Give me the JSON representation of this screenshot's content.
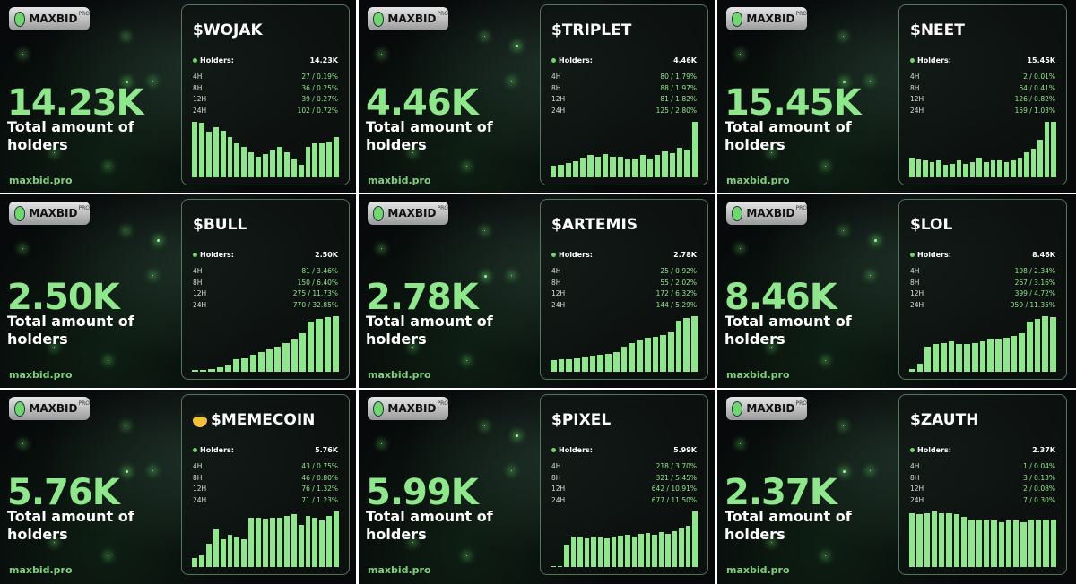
{
  "cards": [
    {
      "brand": "MAXBID",
      "badge": "PRO",
      "total": "14.23K",
      "caption": "Total amount of holders",
      "site": "maxbid.pro",
      "token": "$WOJAK",
      "holders_label": "Holders:",
      "holders": "14.23K",
      "stats": [
        [
          "4H",
          "27 / 0.19%"
        ],
        [
          "8H",
          "36 / 0.25%"
        ],
        [
          "12H",
          "39 / 0.27%"
        ],
        [
          "24H",
          "102 / 0.72%"
        ]
      ],
      "bars": [
        90,
        88,
        74,
        82,
        76,
        66,
        55,
        50,
        40,
        34,
        38,
        44,
        50,
        40,
        30,
        21,
        50,
        55,
        55,
        58,
        66
      ]
    },
    {
      "brand": "MAXBID",
      "badge": "PRO",
      "total": "4.46K",
      "caption": "Total amount of holders",
      "site": "maxbid.pro",
      "token": "$TRIPLET",
      "holders_label": "Holders:",
      "holders": "4.46K",
      "stats": [
        [
          "4H",
          "80 / 1.79%"
        ],
        [
          "8H",
          "88 / 1.97%"
        ],
        [
          "12H",
          "81 / 1.82%"
        ],
        [
          "24H",
          "125 / 2.80%"
        ]
      ],
      "bars": [
        20,
        22,
        25,
        28,
        33,
        38,
        35,
        40,
        35,
        35,
        30,
        32,
        38,
        32,
        38,
        45,
        42,
        50,
        48,
        95
      ]
    },
    {
      "brand": "MAXBID",
      "badge": "PRO",
      "total": "15.45K",
      "caption": "Total amount of holders",
      "site": "maxbid.pro",
      "token": "$NEET",
      "holders_label": "Holders:",
      "holders": "15.45K",
      "stats": [
        [
          "4H",
          "2 / 0.01%"
        ],
        [
          "8H",
          "64 / 0.41%"
        ],
        [
          "12H",
          "126 / 0.82%"
        ],
        [
          "24H",
          "159 / 1.03%"
        ]
      ],
      "bars": [
        35,
        33,
        30,
        28,
        30,
        22,
        25,
        30,
        25,
        28,
        35,
        28,
        30,
        30,
        28,
        30,
        35,
        45,
        52,
        68,
        100,
        100
      ]
    },
    {
      "brand": "MAXBID",
      "badge": "PRO",
      "total": "2.50K",
      "caption": "Total amount of holders",
      "site": "maxbid.pro",
      "token": "$BULL",
      "holders_label": "Holders:",
      "holders": "2.50K",
      "stats": [
        [
          "4H",
          "81 / 3.46%"
        ],
        [
          "8H",
          "150 / 6.40%"
        ],
        [
          "12H",
          "275 / 11.73%"
        ],
        [
          "24H",
          "770 / 32.85%"
        ]
      ],
      "bars": [
        3,
        3,
        5,
        8,
        12,
        22,
        25,
        30,
        35,
        40,
        45,
        52,
        58,
        70,
        90,
        95,
        98,
        100
      ]
    },
    {
      "brand": "MAXBID",
      "badge": "PRO",
      "total": "2.78K",
      "caption": "Total amount of holders",
      "site": "maxbid.pro",
      "token": "$ARTEMIS",
      "holders_label": "Holders:",
      "holders": "2.78K",
      "stats": [
        [
          "4H",
          "25 / 0.92%"
        ],
        [
          "8H",
          "55 / 2.02%"
        ],
        [
          "12H",
          "172 / 6.32%"
        ],
        [
          "24H",
          "144 / 5.29%"
        ]
      ],
      "bars": [
        20,
        22,
        22,
        24,
        25,
        28,
        30,
        32,
        35,
        45,
        50,
        55,
        60,
        62,
        65,
        70,
        90,
        95,
        98
      ]
    },
    {
      "brand": "MAXBID",
      "badge": "PRO",
      "total": "8.46K",
      "caption": "Total amount of holders",
      "site": "maxbid.pro",
      "token": "$LOL",
      "holders_label": "Holders:",
      "holders": "8.46K",
      "stats": [
        [
          "4H",
          "198 / 2.34%"
        ],
        [
          "8H",
          "267 / 3.16%"
        ],
        [
          "12H",
          "399 / 4.72%"
        ],
        [
          "24H",
          "959 / 11.35%"
        ]
      ],
      "bars": [
        5,
        15,
        45,
        50,
        52,
        55,
        50,
        50,
        52,
        55,
        60,
        58,
        62,
        65,
        70,
        90,
        95,
        100,
        98
      ]
    },
    {
      "brand": "MAXBID",
      "badge": "PRO",
      "total": "5.76K",
      "caption": "Total amount of holders",
      "site": "maxbid.pro",
      "token": "$MEMECOIN",
      "holders_label": "Holders:",
      "holders": "5.76K",
      "stats": [
        [
          "4H",
          "43 / 0.75%"
        ],
        [
          "8H",
          "46 / 0.80%"
        ],
        [
          "12H",
          "76 / 1.32%"
        ],
        [
          "24H",
          "71 / 1.23%"
        ]
      ],
      "bars": [
        15,
        20,
        40,
        65,
        48,
        55,
        50,
        48,
        85,
        85,
        82,
        85,
        85,
        88,
        90,
        72,
        88,
        85,
        80,
        88,
        95
      ]
    },
    {
      "brand": "MAXBID",
      "badge": "PRO",
      "total": "5.99K",
      "caption": "Total amount of holders",
      "site": "maxbid.pro",
      "token": "$PIXEL",
      "holders_label": "Holders:",
      "holders": "5.99K",
      "stats": [
        [
          "4H",
          "218 / 3.70%"
        ],
        [
          "8H",
          "321 / 5.45%"
        ],
        [
          "12H",
          "642 / 10.91%"
        ],
        [
          "24H",
          "677 / 11.50%"
        ]
      ],
      "bars": [
        2,
        2,
        40,
        55,
        55,
        52,
        55,
        53,
        52,
        55,
        56,
        58,
        55,
        60,
        62,
        58,
        63,
        60,
        65,
        70,
        75,
        100
      ]
    },
    {
      "brand": "MAXBID",
      "badge": "PRO",
      "total": "2.37K",
      "caption": "Total amount of holders",
      "site": "maxbid.pro",
      "token": "$ZAUTH",
      "holders_label": "Holders:",
      "holders": "2.37K",
      "stats": [
        [
          "4H",
          "1 / 0.04%"
        ],
        [
          "8H",
          "3 / 0.13%"
        ],
        [
          "12H",
          "2 / 0.08%"
        ],
        [
          "24H",
          "7 / 0.30%"
        ]
      ],
      "bars": [
        70,
        68,
        70,
        72,
        70,
        70,
        68,
        65,
        62,
        62,
        60,
        60,
        58,
        60,
        60,
        58,
        62,
        60,
        62,
        62
      ]
    }
  ]
}
